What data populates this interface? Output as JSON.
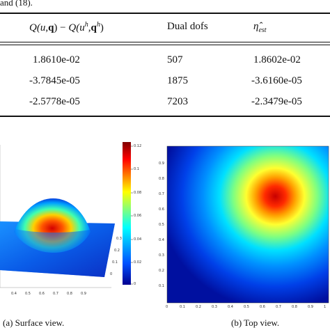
{
  "header_fragment": "and (18).",
  "table": {
    "columns": [
      {
        "parts": [
          "Q(",
          "u",
          ",",
          "q",
          ")",
          " − ",
          "Q(",
          "u",
          "h",
          ",",
          "q",
          "h",
          ")"
        ]
      },
      {
        "label": "Dual dofs"
      },
      {
        "symbol": "η̂",
        "sub": "est"
      }
    ],
    "rows": [
      [
        "1.8610e-02",
        "507",
        "1.8602e-02"
      ],
      [
        "-3.7845e-05",
        "1875",
        "-3.6160e-05"
      ],
      [
        "-2.5778e-05",
        "7203",
        "-2.3479e-05"
      ]
    ]
  },
  "colorbar_ticks": [
    "0.12",
    "0.1",
    "0.08",
    "0.06",
    "0.04",
    "0.02",
    "0"
  ],
  "surface_axis_ticks": [
    "0.3",
    "0.2",
    "0.1",
    "0"
  ],
  "surface_left_ticks": [
    "0.4",
    "0.5",
    "0.6",
    "0.7",
    "0.8",
    "0.9"
  ],
  "top_y_ticks": [
    "0.9",
    "0.8",
    "0.7",
    "0.6",
    "0.5",
    "0.4",
    "0.3",
    "0.2",
    "0.1"
  ],
  "top_x_ticks": [
    "0",
    "0.1",
    "0.2",
    "0.3",
    "0.4",
    "0.5",
    "0.6",
    "0.7",
    "0.8",
    "0.9",
    "1"
  ],
  "captions": {
    "left": "(a)  Surface view.",
    "right": "(b)  Top view."
  }
}
